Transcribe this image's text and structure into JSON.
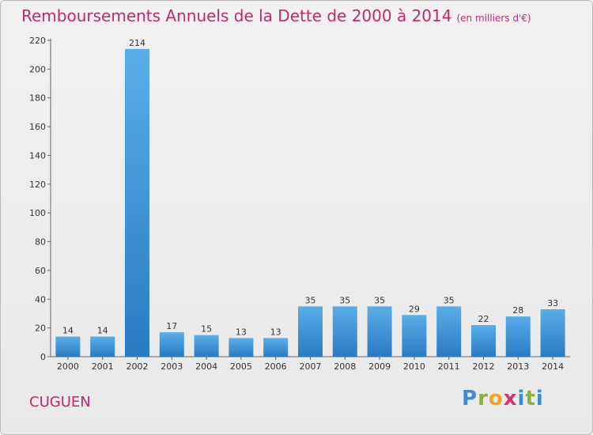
{
  "header": {
    "title": "Remboursements Annuels de la Dette de 2000 à 2014",
    "unit": "(en milliers d'€)"
  },
  "footer": {
    "commune": "CUGUEN",
    "logo_text": "Proxiti"
  },
  "colors": {
    "title": "#c4286c",
    "bar_light": "#5aaee9",
    "bar_dark": "#2a7ac2"
  },
  "chart_data": {
    "type": "bar",
    "title": "Remboursements Annuels de la Dette de 2000 à 2014",
    "subtitle": "(en milliers d'€)",
    "xlabel": "",
    "ylabel": "",
    "categories": [
      "2000",
      "2001",
      "2002",
      "2003",
      "2004",
      "2005",
      "2006",
      "2007",
      "2008",
      "2009",
      "2010",
      "2011",
      "2012",
      "2013",
      "2014"
    ],
    "values": [
      14,
      14,
      214,
      17,
      15,
      13,
      13,
      35,
      35,
      35,
      29,
      35,
      22,
      28,
      33
    ],
    "ylim": [
      0,
      220
    ],
    "yticks": [
      0,
      20,
      40,
      60,
      80,
      100,
      120,
      140,
      160,
      180,
      200,
      220
    ],
    "grid": false,
    "legend": "none"
  }
}
